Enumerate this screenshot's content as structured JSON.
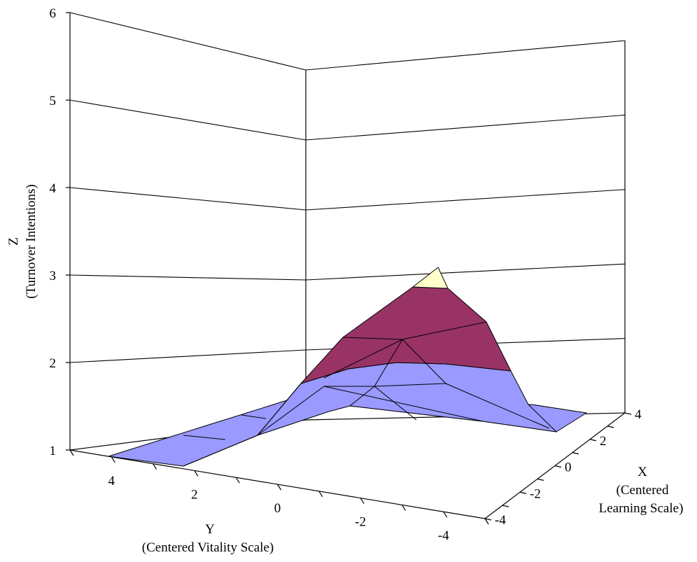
{
  "chart_data": {
    "type": "surface",
    "title": "",
    "zlabel": "Z",
    "zlabel_sub": "(Turnover Intentions)",
    "xlabel": "X",
    "xlabel_sub_1": "(Centered",
    "xlabel_sub_2": "Learning Scale)",
    "ylabel": "Y",
    "ylabel_sub": "(Centered Vitality Scale)",
    "zlim": [
      1,
      6
    ],
    "z_ticks": [
      "1",
      "2",
      "3",
      "4",
      "5",
      "6"
    ],
    "x_ticks": [
      "-4",
      "-2",
      "0",
      "2",
      "4"
    ],
    "y_ticks": [
      "4",
      "2",
      "0",
      "-2",
      "-4"
    ],
    "grid": true,
    "bands": [
      {
        "range": [
          1,
          2
        ],
        "color": "#9999ff"
      },
      {
        "range": [
          2,
          3
        ],
        "color": "#993366"
      },
      {
        "range": [
          3,
          4
        ],
        "color": "#ffffcc"
      }
    ],
    "peak": {
      "x": 0,
      "y": -2,
      "z": 3.2
    }
  },
  "colors": {
    "low": "#9999ff",
    "mid": "#993366",
    "high": "#ffffcc"
  }
}
